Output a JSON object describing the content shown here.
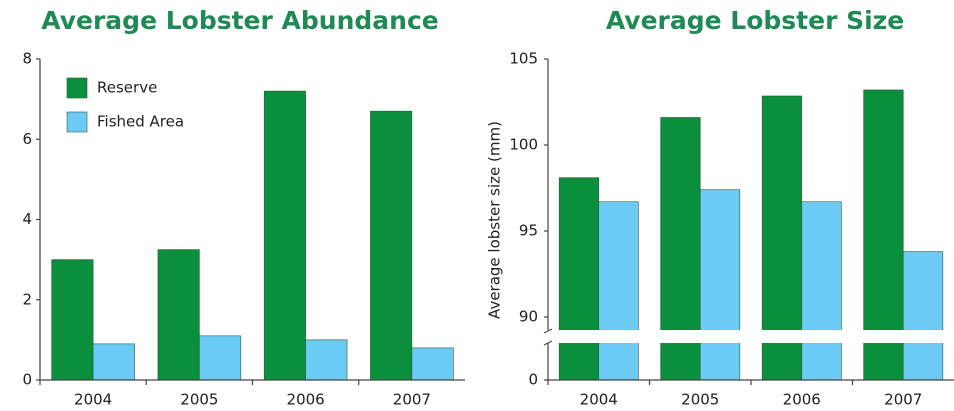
{
  "chart_data": [
    {
      "type": "bar",
      "title": "Average Lobster Abundance",
      "categories": [
        "2004",
        "2005",
        "2006",
        "2007"
      ],
      "series": [
        {
          "name": "Reserve",
          "color": "#0a8f3c",
          "values": [
            3.0,
            3.25,
            7.2,
            6.7
          ]
        },
        {
          "name": "Fished Area",
          "color": "#6ccbf5",
          "values": [
            0.9,
            1.1,
            1.0,
            0.8
          ]
        }
      ],
      "ylim": [
        0,
        8
      ],
      "yticks": [
        0,
        2,
        4,
        6,
        8
      ],
      "legend": "upper-left"
    },
    {
      "type": "bar",
      "title": "Average Lobster Size",
      "ylabel": "Average lobster size (mm)",
      "categories": [
        "2004",
        "2005",
        "2006",
        "2007"
      ],
      "series": [
        {
          "color": "#0a8f3c",
          "values": [
            98.1,
            101.6,
            102.85,
            103.2
          ]
        },
        {
          "color": "#6ccbf5",
          "values": [
            96.7,
            97.4,
            96.7,
            93.8
          ]
        }
      ],
      "ylim": [
        0,
        105
      ],
      "yticks": [
        0,
        90,
        95,
        100,
        105
      ],
      "ybreak": [
        0,
        90
      ]
    }
  ]
}
